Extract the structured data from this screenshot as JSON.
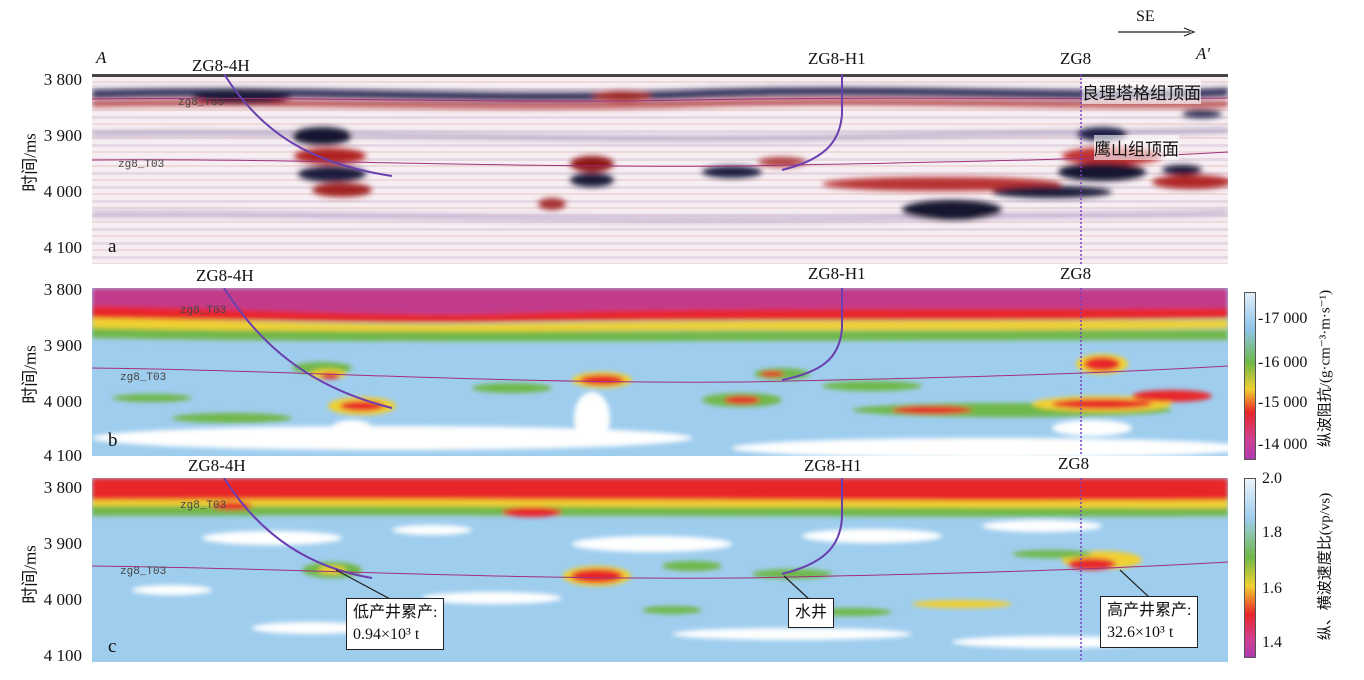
{
  "profile": {
    "start": "A",
    "end": "A′",
    "direction": "SE"
  },
  "y_axis_label": "时间/ms",
  "y_ticks": [
    "3 800",
    "3 900",
    "4 000",
    "4 100"
  ],
  "panel_labels": [
    "a",
    "b",
    "c"
  ],
  "wells": {
    "w1": "ZG8-4H",
    "w2": "ZG8-H1",
    "w3": "ZG8"
  },
  "horizon_tags": {
    "upper": "zg8_T03",
    "lower": "zg8_T03"
  },
  "horizon_labels": {
    "top1": "良理塔格组顶面",
    "top2": "鹰山组顶面"
  },
  "colorbar_b": {
    "label": "纵波阻抗/(g·cm⁻³·m·s⁻¹)",
    "ticks": [
      "-17 000",
      "-16 000",
      "-15 000",
      "-14 000"
    ]
  },
  "colorbar_c": {
    "label": "纵、横波速度比(vp/vs)",
    "ticks": [
      "2.0",
      "1.8",
      "1.6",
      "1.4"
    ]
  },
  "callouts": {
    "low": {
      "line1": "低产井累产:",
      "line2": "0.94×10³ t"
    },
    "water": {
      "line1": "水井"
    },
    "high": {
      "line1": "高产井累产:",
      "line2": "32.6×10³ t"
    }
  },
  "colors": {
    "well_path": "#6a3fb0",
    "horizon": "#a0307a",
    "high_red": "#e8262a",
    "low_blue": "#8fc2e8"
  }
}
